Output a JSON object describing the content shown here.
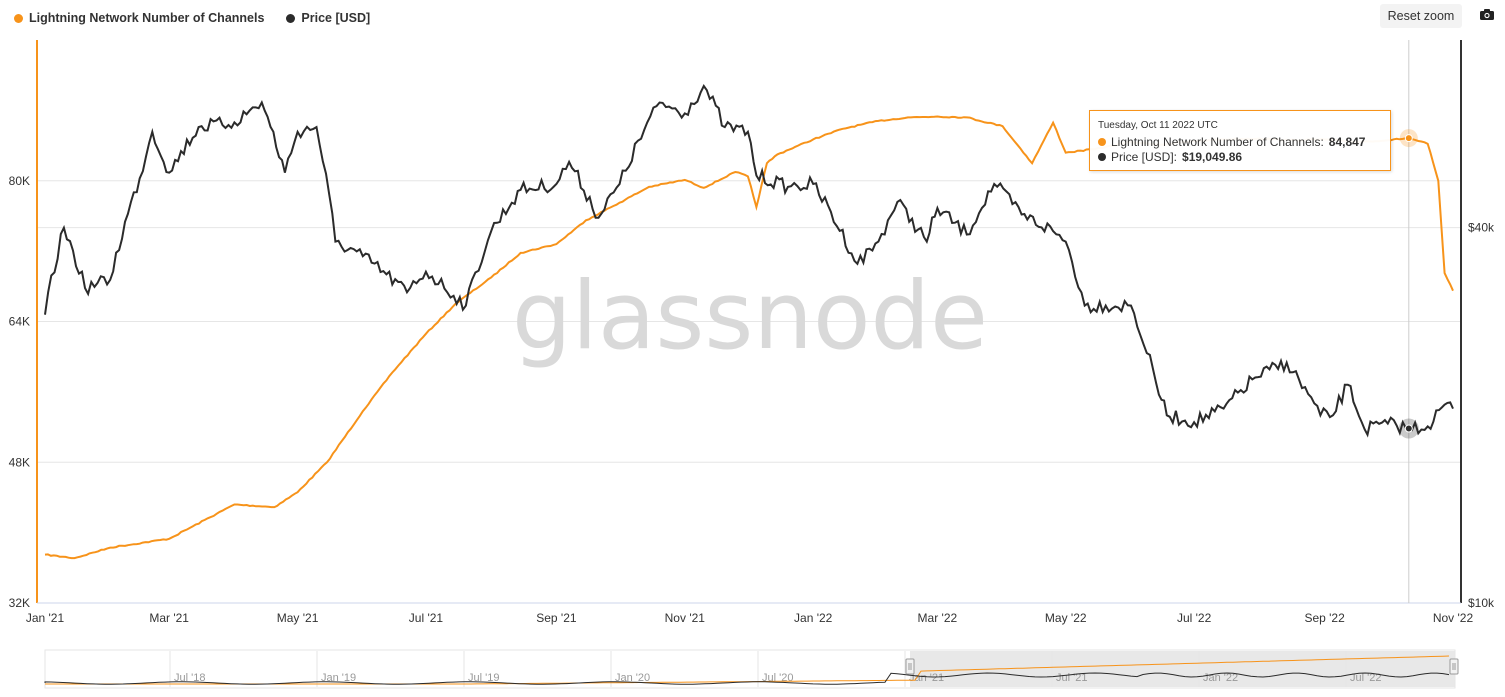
{
  "legend": {
    "series1": "Lightning Network Number of Channels",
    "series2": "Price [USD]"
  },
  "toolbar": {
    "reset_zoom": "Reset zoom",
    "camera_icon": "camera-icon"
  },
  "watermark": "glassnode",
  "tooltip": {
    "date": "Tuesday, Oct 11 2022 UTC",
    "s1_label": "Lightning Network Number of Channels: ",
    "s1_value": "84,847",
    "s2_label": "Price [USD]: ",
    "s2_value": "$19,049.86"
  },
  "colors": {
    "channels": "#f7931a",
    "price": "#2b2b2b",
    "grid": "#e6e6e6",
    "navigator_mask": "#e6e6e6"
  },
  "chart_data": {
    "type": "line",
    "x_labels": [
      "Jan '21",
      "Mar '21",
      "May '21",
      "Jul '21",
      "Sep '21",
      "Nov '21",
      "Jan '22",
      "Mar '22",
      "May '22",
      "Jul '22",
      "Sep '22",
      "Nov '22"
    ],
    "left_axis_labels": [
      "32K",
      "48K",
      "64K",
      "80K"
    ],
    "right_axis_labels": [
      "$10k",
      "$40k"
    ],
    "left_ylim": [
      32000,
      96000
    ],
    "right_scale": "log",
    "right_ylim": [
      10000,
      80000
    ],
    "series": [
      {
        "name": "Lightning Network Number of Channels",
        "axis": "left",
        "x": [
          "2021-01-01",
          "2021-01-15",
          "2021-02-01",
          "2021-03-01",
          "2021-04-01",
          "2021-04-20",
          "2021-05-01",
          "2021-05-15",
          "2021-06-01",
          "2021-06-15",
          "2021-07-01",
          "2021-07-15",
          "2021-08-01",
          "2021-08-15",
          "2021-09-01",
          "2021-09-15",
          "2021-10-01",
          "2021-10-15",
          "2021-11-01",
          "2021-11-10",
          "2021-11-25",
          "2021-12-01",
          "2021-12-05",
          "2021-12-10",
          "2021-12-15",
          "2022-01-01",
          "2022-01-15",
          "2022-02-01",
          "2022-02-15",
          "2022-03-01",
          "2022-03-15",
          "2022-04-01",
          "2022-04-15",
          "2022-04-25",
          "2022-05-01",
          "2022-05-15",
          "2022-06-01",
          "2022-06-15",
          "2022-07-01",
          "2022-07-15",
          "2022-08-01",
          "2022-08-15",
          "2022-09-01",
          "2022-09-15",
          "2022-10-01",
          "2022-10-11",
          "2022-10-20",
          "2022-10-25",
          "2022-10-28",
          "2022-11-01"
        ],
        "values": [
          37500,
          37100,
          38300,
          39300,
          43200,
          42900,
          44600,
          48000,
          53800,
          58200,
          62600,
          66000,
          69000,
          71800,
          72800,
          75500,
          77500,
          79300,
          80100,
          79200,
          81000,
          80500,
          77000,
          82000,
          83000,
          84700,
          85900,
          86800,
          87200,
          87300,
          87200,
          86200,
          82000,
          86600,
          83200,
          83600,
          84400,
          84100,
          84500,
          84700,
          84800,
          84600,
          84700,
          84400,
          84600,
          84847,
          84200,
          80000,
          69500,
          67500
        ]
      },
      {
        "name": "Price [USD]",
        "axis": "right",
        "x": [
          "2021-01-01",
          "2021-01-10",
          "2021-01-20",
          "2021-02-01",
          "2021-02-15",
          "2021-02-21",
          "2021-03-01",
          "2021-03-15",
          "2021-04-01",
          "2021-04-14",
          "2021-04-25",
          "2021-05-01",
          "2021-05-10",
          "2021-05-19",
          "2021-06-01",
          "2021-06-22",
          "2021-07-01",
          "2021-07-20",
          "2021-08-01",
          "2021-08-15",
          "2021-09-01",
          "2021-09-07",
          "2021-09-21",
          "2021-10-01",
          "2021-10-20",
          "2021-11-01",
          "2021-11-10",
          "2021-11-20",
          "2021-12-01",
          "2021-12-05",
          "2021-12-20",
          "2022-01-01",
          "2022-01-22",
          "2022-02-01",
          "2022-02-10",
          "2022-02-24",
          "2022-03-01",
          "2022-03-15",
          "2022-03-28",
          "2022-04-10",
          "2022-04-25",
          "2022-05-01",
          "2022-05-10",
          "2022-05-20",
          "2022-06-01",
          "2022-06-13",
          "2022-06-18",
          "2022-07-01",
          "2022-07-15",
          "2022-07-30",
          "2022-08-14",
          "2022-08-30",
          "2022-09-05",
          "2022-09-12",
          "2022-09-20",
          "2022-10-01",
          "2022-10-11",
          "2022-10-20",
          "2022-10-28",
          "2022-11-01"
        ],
        "values": [
          29000,
          40000,
          32000,
          33000,
          48000,
          57000,
          49000,
          58000,
          59000,
          63500,
          49000,
          57000,
          58000,
          38000,
          36000,
          31500,
          34000,
          30000,
          39500,
          46000,
          47000,
          51000,
          41500,
          47000,
          63500,
          61000,
          67500,
          58000,
          57000,
          48500,
          46500,
          47000,
          35000,
          38000,
          44000,
          38000,
          43000,
          39000,
          47000,
          42000,
          39500,
          38000,
          30000,
          30000,
          30000,
          22500,
          20000,
          19500,
          20500,
          23000,
          24300,
          20000,
          20000,
          22400,
          19000,
          19400,
          19049.86,
          19200,
          20800,
          20500
        ]
      }
    ]
  },
  "navigator": {
    "labels": [
      "Jul '18",
      "Jan '19",
      "Jul '19",
      "Jan '20",
      "Jul '20",
      "Jan '21",
      "Jul '21",
      "Jan '22",
      "Jul '22"
    ],
    "selection": [
      "Jan '21",
      "Nov '22"
    ]
  }
}
